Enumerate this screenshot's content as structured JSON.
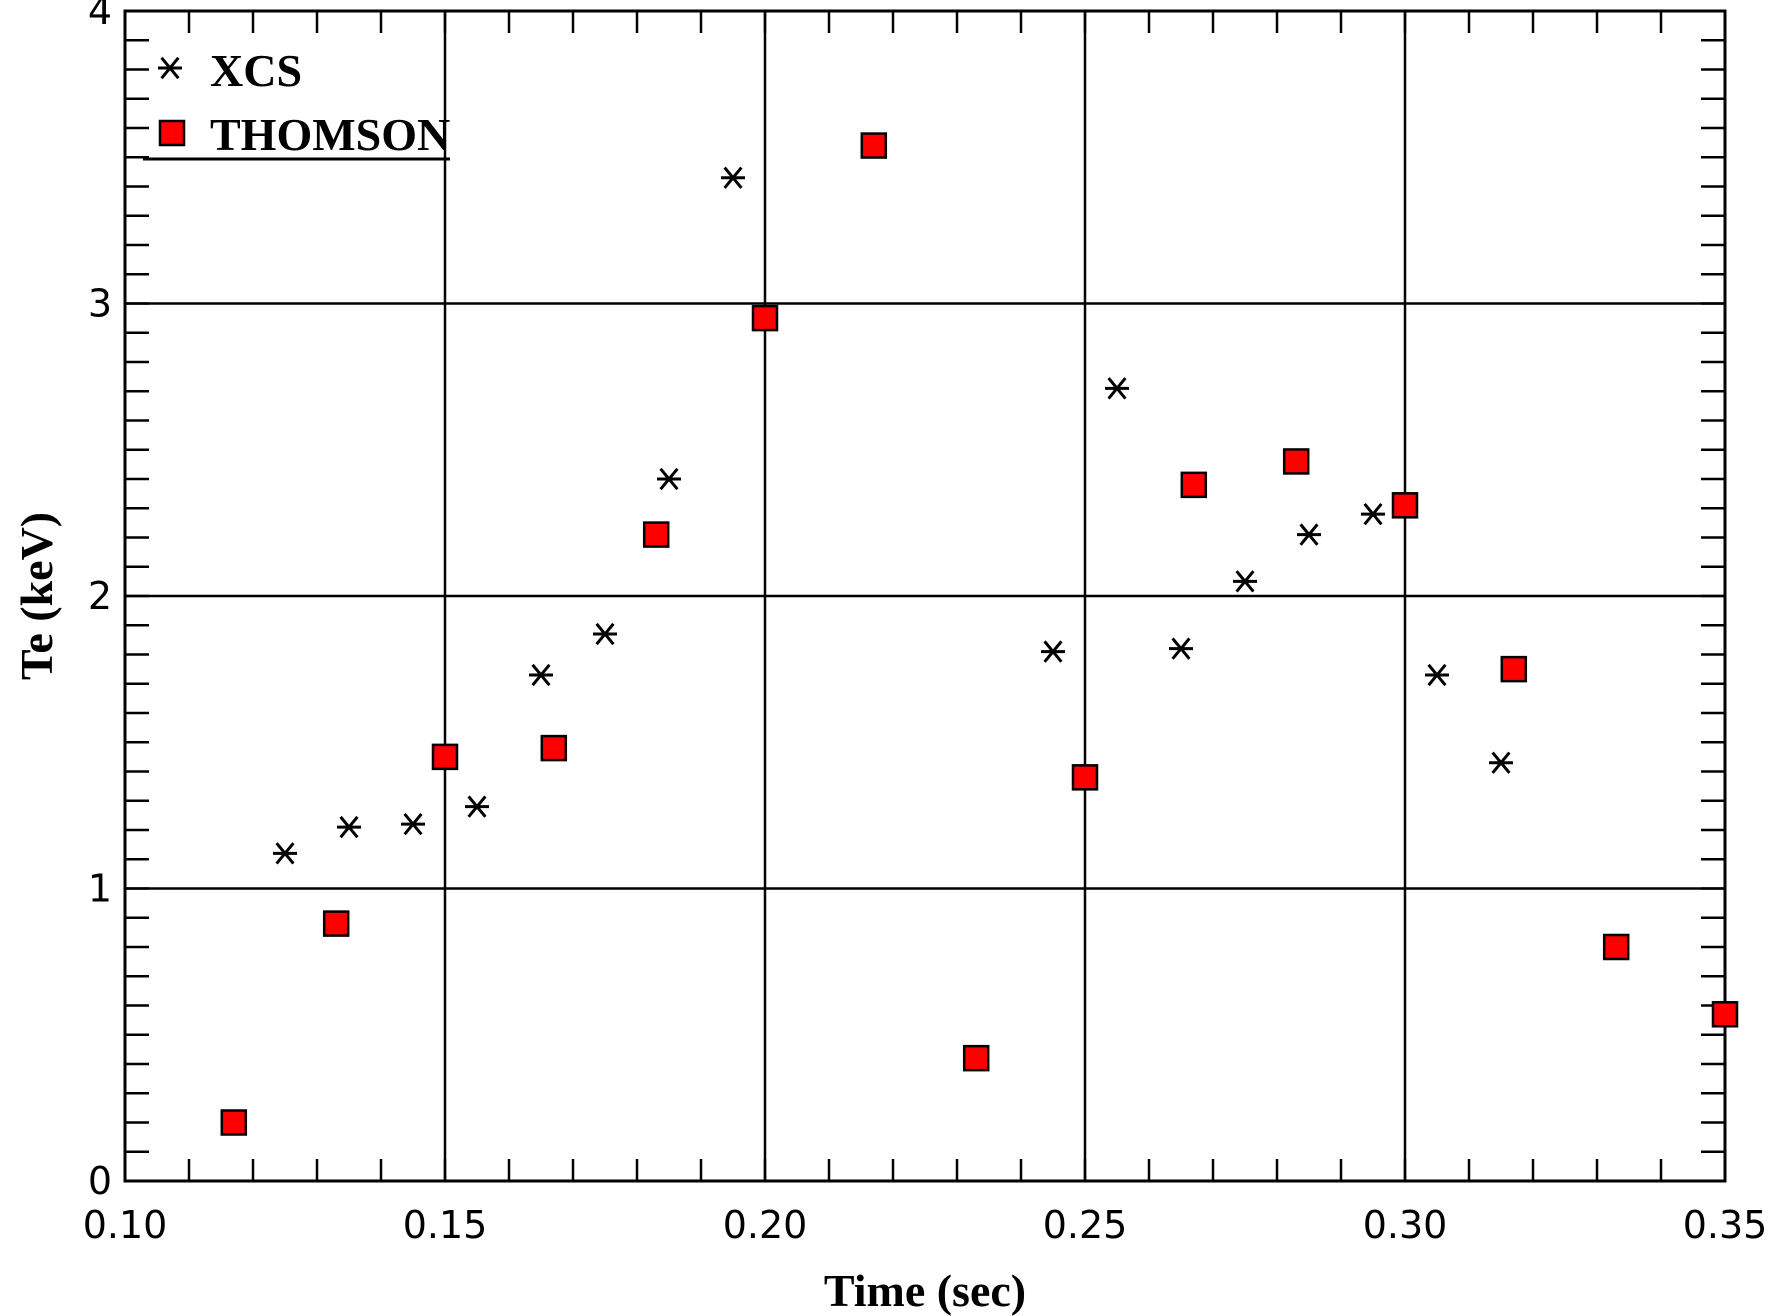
{
  "chart_data": {
    "type": "scatter",
    "title": "",
    "xlabel": "Time (sec)",
    "ylabel": "Te (keV)",
    "xlim": [
      0.1,
      0.35
    ],
    "ylim": [
      0,
      4
    ],
    "x_ticks": [
      "0.10",
      "0.15",
      "0.20",
      "0.25",
      "0.30",
      "0.35"
    ],
    "y_ticks": [
      "0",
      "1",
      "2",
      "3",
      "4"
    ],
    "grid": true,
    "legend": "top-left",
    "series": [
      {
        "name": "XCS",
        "marker": "asterisk",
        "color": "#000000",
        "points": [
          [
            0.125,
            1.12
          ],
          [
            0.135,
            1.21
          ],
          [
            0.145,
            1.22
          ],
          [
            0.155,
            1.28
          ],
          [
            0.165,
            1.73
          ],
          [
            0.175,
            1.87
          ],
          [
            0.185,
            2.4
          ],
          [
            0.195,
            3.43
          ],
          [
            0.245,
            1.81
          ],
          [
            0.255,
            2.71
          ],
          [
            0.265,
            1.82
          ],
          [
            0.275,
            2.05
          ],
          [
            0.285,
            2.21
          ],
          [
            0.295,
            2.28
          ],
          [
            0.305,
            1.73
          ],
          [
            0.315,
            1.43
          ]
        ]
      },
      {
        "name": "THOMSON",
        "marker": "square",
        "color": "#ff0000",
        "points": [
          [
            0.117,
            0.2
          ],
          [
            0.133,
            0.88
          ],
          [
            0.15,
            1.45
          ],
          [
            0.167,
            1.48
          ],
          [
            0.183,
            2.21
          ],
          [
            0.2,
            2.95
          ],
          [
            0.217,
            3.54
          ],
          [
            0.233,
            0.42
          ],
          [
            0.25,
            1.38
          ],
          [
            0.267,
            2.38
          ],
          [
            0.283,
            2.46
          ],
          [
            0.3,
            2.31
          ],
          [
            0.317,
            1.75
          ],
          [
            0.333,
            0.8
          ],
          [
            0.35,
            0.57
          ]
        ]
      }
    ]
  }
}
